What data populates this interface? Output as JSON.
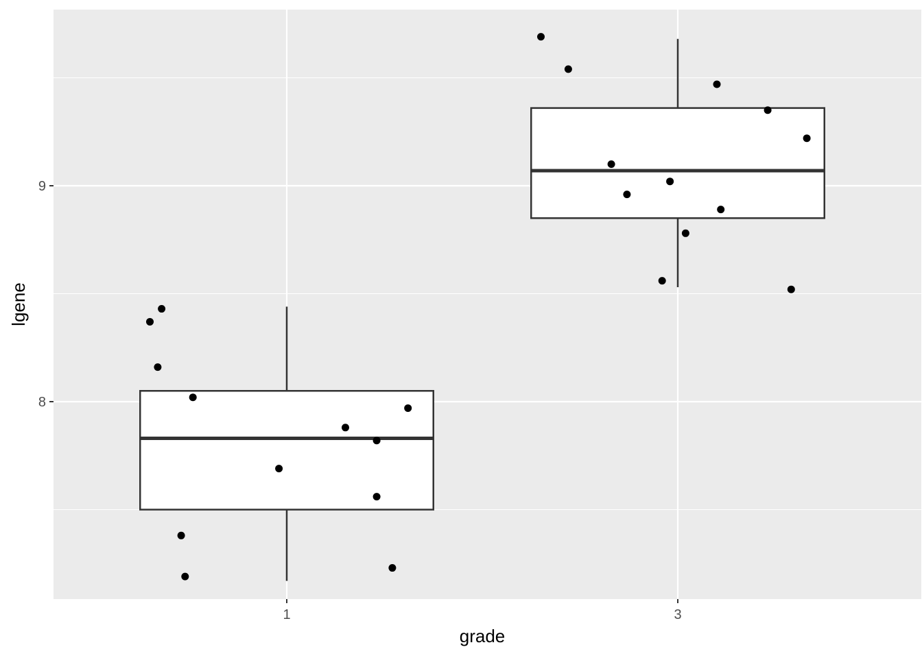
{
  "chart_data": {
    "type": "boxplot",
    "xlabel": "grade",
    "ylabel": "lgene",
    "categories": [
      "1",
      "3"
    ],
    "y_ticks": [
      8,
      9
    ],
    "ylim": [
      7.1,
      9.82
    ],
    "grid": true,
    "colors": {
      "panel_background": "#ebebeb",
      "grid": "#ffffff",
      "box_fill": "#ffffff",
      "box_stroke": "#333333",
      "point": "#000000"
    },
    "boxes": [
      {
        "category": "1",
        "whisker_low": 7.17,
        "q1": 7.5,
        "median": 7.83,
        "q3": 8.05,
        "whisker_high": 8.44
      },
      {
        "category": "3",
        "whisker_low": 8.53,
        "q1": 8.85,
        "median": 9.07,
        "q3": 9.36,
        "whisker_high": 9.68
      }
    ],
    "points": [
      {
        "category": "1",
        "jitter": -0.32,
        "y": 8.43
      },
      {
        "category": "1",
        "jitter": -0.35,
        "y": 8.37
      },
      {
        "category": "1",
        "jitter": -0.33,
        "y": 8.16
      },
      {
        "category": "1",
        "jitter": -0.24,
        "y": 8.02
      },
      {
        "category": "1",
        "jitter": 0.31,
        "y": 7.97
      },
      {
        "category": "1",
        "jitter": 0.15,
        "y": 7.88
      },
      {
        "category": "1",
        "jitter": 0.23,
        "y": 7.82
      },
      {
        "category": "1",
        "jitter": -0.02,
        "y": 7.69
      },
      {
        "category": "1",
        "jitter": 0.23,
        "y": 7.56
      },
      {
        "category": "1",
        "jitter": -0.27,
        "y": 7.38
      },
      {
        "category": "1",
        "jitter": 0.27,
        "y": 7.23
      },
      {
        "category": "1",
        "jitter": -0.26,
        "y": 7.19
      },
      {
        "category": "3",
        "jitter": -0.35,
        "y": 9.69
      },
      {
        "category": "3",
        "jitter": -0.28,
        "y": 9.54
      },
      {
        "category": "3",
        "jitter": 0.1,
        "y": 9.47
      },
      {
        "category": "3",
        "jitter": 0.23,
        "y": 9.35
      },
      {
        "category": "3",
        "jitter": 0.33,
        "y": 9.22
      },
      {
        "category": "3",
        "jitter": -0.17,
        "y": 9.1
      },
      {
        "category": "3",
        "jitter": -0.02,
        "y": 9.02
      },
      {
        "category": "3",
        "jitter": -0.13,
        "y": 8.96
      },
      {
        "category": "3",
        "jitter": 0.11,
        "y": 8.89
      },
      {
        "category": "3",
        "jitter": 0.02,
        "y": 8.78
      },
      {
        "category": "3",
        "jitter": -0.04,
        "y": 8.56
      },
      {
        "category": "3",
        "jitter": 0.29,
        "y": 8.52
      }
    ]
  }
}
